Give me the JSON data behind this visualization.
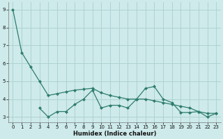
{
  "xlabel": "Humidex (Indice chaleur)",
  "line1_x": [
    0,
    1,
    2,
    3,
    4,
    5,
    6,
    7,
    8,
    9,
    10,
    11,
    12,
    13,
    14,
    15,
    16,
    17,
    18,
    19,
    20,
    21,
    22,
    23
  ],
  "line1_y": [
    9.0,
    6.6,
    5.8,
    5.0,
    4.2,
    4.3,
    4.4,
    4.5,
    4.55,
    4.6,
    4.35,
    4.2,
    4.1,
    4.0,
    4.0,
    4.0,
    3.9,
    3.8,
    3.7,
    3.6,
    3.5,
    3.3,
    3.2,
    3.2
  ],
  "line2_x": [
    3,
    4,
    5,
    6,
    7,
    8,
    9,
    10,
    11,
    12,
    13,
    14,
    15,
    16,
    17,
    18,
    19,
    20,
    21,
    22,
    23
  ],
  "line2_y": [
    3.5,
    3.0,
    3.3,
    3.3,
    3.7,
    4.0,
    4.5,
    3.5,
    3.65,
    3.65,
    3.5,
    4.0,
    4.6,
    4.7,
    4.0,
    3.8,
    3.25,
    3.25,
    3.3,
    3.0,
    3.2
  ],
  "line_color": "#2e7d6e",
  "bg_color": "#ceeaea",
  "grid_color": "#aacfcf",
  "ylim": [
    2.7,
    9.4
  ],
  "xlim": [
    -0.5,
    23.5
  ],
  "yticks": [
    3,
    4,
    5,
    6,
    7,
    8,
    9
  ],
  "xticks": [
    0,
    1,
    2,
    3,
    4,
    5,
    6,
    7,
    8,
    9,
    10,
    11,
    12,
    13,
    14,
    15,
    16,
    17,
    18,
    19,
    20,
    21,
    22,
    23
  ],
  "tick_fontsize": 5.0,
  "xlabel_fontsize": 6.0
}
